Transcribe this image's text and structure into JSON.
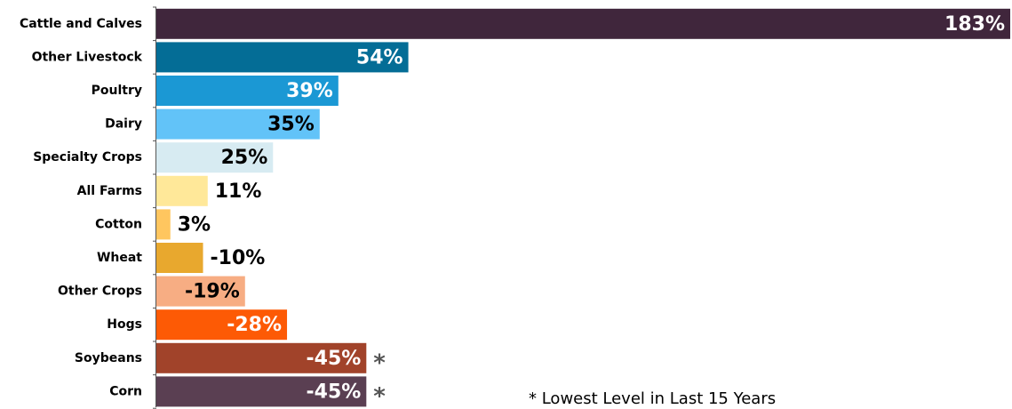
{
  "chart_data": {
    "type": "bar",
    "orientation": "horizontal",
    "categories": [
      "Cattle and Calves",
      "Other Livestock",
      "Poultry",
      "Dairy",
      "Specialty Crops",
      "All Farms",
      "Cotton",
      "Wheat",
      "Other Crops",
      "Hogs",
      "Soybeans",
      "Corn"
    ],
    "values": [
      183,
      54,
      39,
      35,
      25,
      11,
      3,
      -10,
      -19,
      -28,
      -45,
      -45
    ],
    "value_labels": [
      "183%",
      "54%",
      "39%",
      "35%",
      "25%",
      "11%",
      "3%",
      "-10%",
      "-19%",
      "-28%",
      "-45%",
      "-45%"
    ],
    "colors": [
      "#40263c",
      "#046d96",
      "#1b98d4",
      "#62c3f8",
      "#d7ebf2",
      "#ffe899",
      "#ffc65f",
      "#e8a82e",
      "#f7ad83",
      "#fd5a05",
      "#a1432a",
      "#5a3f52"
    ],
    "value_notes": [
      null,
      null,
      null,
      null,
      null,
      null,
      null,
      null,
      null,
      null,
      "*",
      "*"
    ],
    "footnote": "* Lowest Level in Last 15 Years"
  }
}
